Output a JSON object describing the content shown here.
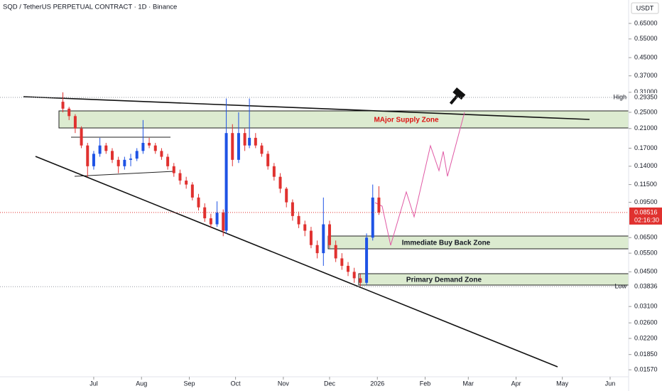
{
  "chart_data": {
    "type": "candlestick",
    "title": "SQD / TetherUS PERPETUAL CONTRACT · 1D · Binance",
    "currency": "USDT",
    "log_y": true,
    "up_color": "#1e53e5",
    "down_color": "#e0312f",
    "x": [
      10,
      14,
      18,
      22,
      26,
      30,
      34,
      38,
      42,
      46,
      50,
      54,
      58,
      62,
      66,
      70,
      74,
      78,
      82,
      86,
      90,
      94,
      98,
      102,
      106,
      110,
      114,
      116,
      120,
      124,
      128,
      131,
      135,
      139,
      143,
      147,
      151,
      155,
      159,
      163,
      167,
      171,
      175,
      179,
      183,
      187,
      191,
      195,
      199,
      203,
      207,
      211,
      215
    ],
    "open": [
      0.28,
      0.26,
      0.24,
      0.21,
      0.175,
      0.14,
      0.16,
      0.175,
      0.165,
      0.15,
      0.14,
      0.15,
      0.152,
      0.165,
      0.18,
      0.175,
      0.165,
      0.155,
      0.14,
      0.13,
      0.12,
      0.115,
      0.1,
      0.09,
      0.08,
      0.075,
      0.085,
      0.07,
      0.2,
      0.15,
      0.2,
      0.175,
      0.19,
      0.175,
      0.16,
      0.14,
      0.125,
      0.11,
      0.095,
      0.082,
      0.075,
      0.07,
      0.06,
      0.055,
      0.075,
      0.06,
      0.052,
      0.048,
      0.045,
      0.042,
      0.04,
      0.065,
      0.1
    ],
    "high": [
      0.31,
      0.265,
      0.245,
      0.215,
      0.18,
      0.165,
      0.19,
      0.18,
      0.17,
      0.155,
      0.155,
      0.16,
      0.17,
      0.23,
      0.19,
      0.18,
      0.17,
      0.16,
      0.145,
      0.135,
      0.125,
      0.118,
      0.104,
      0.094,
      0.084,
      0.096,
      0.088,
      0.29,
      0.22,
      0.25,
      0.21,
      0.29,
      0.2,
      0.18,
      0.165,
      0.145,
      0.13,
      0.112,
      0.098,
      0.086,
      0.078,
      0.073,
      0.063,
      0.1,
      0.078,
      0.063,
      0.055,
      0.05,
      0.047,
      0.044,
      0.068,
      0.115,
      0.113
    ],
    "low": [
      0.25,
      0.23,
      0.2,
      0.17,
      0.125,
      0.135,
      0.155,
      0.16,
      0.145,
      0.13,
      0.135,
      0.14,
      0.148,
      0.16,
      0.17,
      0.16,
      0.15,
      0.135,
      0.125,
      0.115,
      0.11,
      0.097,
      0.087,
      0.077,
      0.072,
      0.073,
      0.066,
      0.068,
      0.14,
      0.145,
      0.165,
      0.17,
      0.17,
      0.155,
      0.135,
      0.12,
      0.105,
      0.09,
      0.078,
      0.072,
      0.066,
      0.058,
      0.052,
      0.048,
      0.058,
      0.05,
      0.046,
      0.043,
      0.04,
      0.0384,
      0.039,
      0.063,
      0.083
    ],
    "close": [
      0.26,
      0.24,
      0.21,
      0.175,
      0.14,
      0.16,
      0.175,
      0.165,
      0.15,
      0.14,
      0.15,
      0.152,
      0.165,
      0.18,
      0.175,
      0.165,
      0.155,
      0.14,
      0.13,
      0.12,
      0.115,
      0.1,
      0.09,
      0.08,
      0.075,
      0.085,
      0.07,
      0.2,
      0.15,
      0.2,
      0.175,
      0.19,
      0.175,
      0.16,
      0.14,
      0.125,
      0.11,
      0.095,
      0.082,
      0.075,
      0.07,
      0.06,
      0.055,
      0.075,
      0.06,
      0.052,
      0.048,
      0.045,
      0.042,
      0.04,
      0.065,
      0.1,
      0.0852
    ],
    "xlim": [
      -30.8,
      377
    ],
    "xticks": [
      {
        "value": 30,
        "label": "Jul"
      },
      {
        "value": 61,
        "label": "Aug"
      },
      {
        "value": 92,
        "label": "Sep"
      },
      {
        "value": 122,
        "label": "Oct"
      },
      {
        "value": 153,
        "label": "Nov"
      },
      {
        "value": 183,
        "label": "Dec"
      },
      {
        "value": 214,
        "label": "2026"
      },
      {
        "value": 245,
        "label": "Feb"
      },
      {
        "value": 273,
        "label": "Mar"
      },
      {
        "value": 304,
        "label": "Apr"
      },
      {
        "value": 334,
        "label": "May"
      },
      {
        "value": 365,
        "label": "Jun"
      }
    ],
    "ylim": [
      0.0125,
      0.836
    ],
    "yticks": [
      {
        "value": 0.65,
        "label": "0.65000"
      },
      {
        "value": 0.55,
        "label": "0.55000"
      },
      {
        "value": 0.45,
        "label": "0.45000"
      },
      {
        "value": 0.37,
        "label": "0.37000"
      },
      {
        "value": 0.31,
        "label": "0.31000"
      },
      {
        "value": 0.25,
        "label": "0.25000"
      },
      {
        "value": 0.21,
        "label": "0.21000"
      },
      {
        "value": 0.17,
        "label": "0.17000"
      },
      {
        "value": 0.14,
        "label": "0.14000"
      },
      {
        "value": 0.115,
        "label": "0.11500"
      },
      {
        "value": 0.095,
        "label": "0.09500"
      },
      {
        "value": 0.065,
        "label": "0.06500"
      },
      {
        "value": 0.055,
        "label": "0.05500"
      },
      {
        "value": 0.045,
        "label": "0.04500"
      },
      {
        "value": 0.031,
        "label": "0.03100"
      },
      {
        "value": 0.026,
        "label": "0.02600"
      },
      {
        "value": 0.022,
        "label": "0.02200"
      },
      {
        "value": 0.0185,
        "label": "0.01850"
      },
      {
        "value": 0.0157,
        "label": "0.01570"
      }
    ],
    "high_marker": {
      "name": "High",
      "value": {
        "value": 0.2935,
        "label": "0.29350"
      }
    },
    "low_marker": {
      "name": "Low",
      "value": {
        "value": 0.03836,
        "label": "0.03836"
      }
    },
    "last_price": {
      "value": 0.08516,
      "countdown": "02:16:30"
    },
    "annotations": [
      "MAjor Supply Zone",
      "Immediate Buy Back Zone",
      "Primary Demand Zone"
    ]
  }
}
